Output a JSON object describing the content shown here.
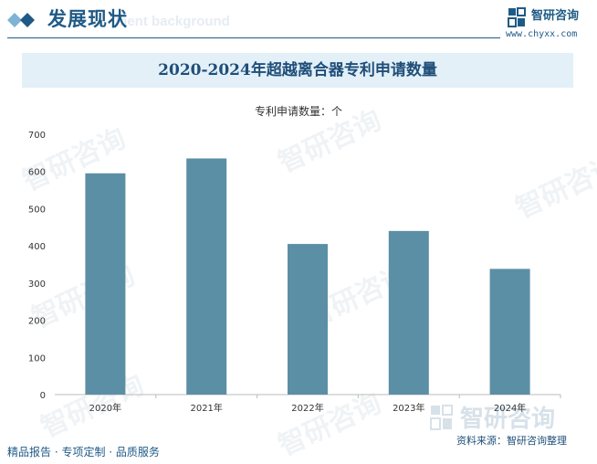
{
  "header": {
    "section_title": "发展现状",
    "section_subtitle": "ment background",
    "brand_name": "智研咨询",
    "brand_url": "www.chyxx.com"
  },
  "chart_data": {
    "type": "bar",
    "title": "2020-2024年超越离合器专利申请数量",
    "unit_label": "专利申请数量：个",
    "categories": [
      "2020年",
      "2021年",
      "2022年",
      "2023年",
      "2024年"
    ],
    "values": [
      595,
      635,
      405,
      440,
      338
    ],
    "ylim": [
      0,
      700
    ],
    "yticks": [
      0,
      100,
      200,
      300,
      400,
      500,
      600,
      700
    ],
    "bar_color": "#5b8fa5",
    "grid": false
  },
  "footer": {
    "tagline": "精品报告 · 专项定制 · 品质服务",
    "source": "资料来源：智研咨询整理"
  },
  "watermark": {
    "text": "智研咨询"
  }
}
